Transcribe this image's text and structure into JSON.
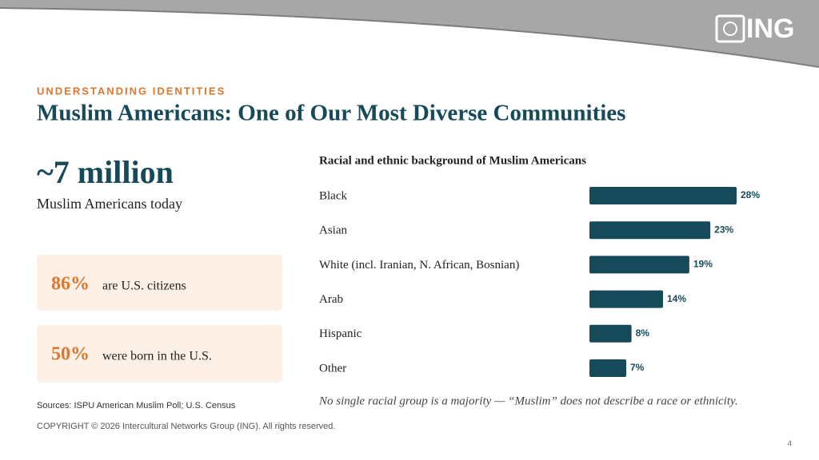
{
  "header": {
    "kicker": "UNDERSTANDING IDENTITIES",
    "title": "Muslim Americans: One of Our Most Diverse Communities",
    "logo": "ING"
  },
  "stat": {
    "value": "~7 million",
    "caption": "Muslim Americans today"
  },
  "cards": [
    {
      "value": "86%",
      "text": "are U.S. citizens"
    },
    {
      "value": "50%",
      "text": "were born in the U.S."
    }
  ],
  "chart_data": {
    "type": "bar",
    "orientation": "horizontal",
    "title": "Racial and ethnic background of Muslim Americans",
    "categories": [
      "Black",
      "Asian",
      "White (incl. Iranian, N. African, Bosnian)",
      "Arab",
      "Hispanic",
      "Other"
    ],
    "values": [
      28,
      23,
      19,
      14,
      8,
      7
    ],
    "value_labels": [
      "28%",
      "23%",
      "19%",
      "14%",
      "8%",
      "7%"
    ],
    "color": "#164a5a",
    "note": "No single racial group is a majority — “Muslim” does not describe a race or ethnicity."
  },
  "sources": "Sources: ISPU American Muslim Poll; U.S. Census",
  "copyright": "COPYRIGHT © 2026 Intercultural Networks Group (ING). All rights reserved.",
  "page_number": "4"
}
